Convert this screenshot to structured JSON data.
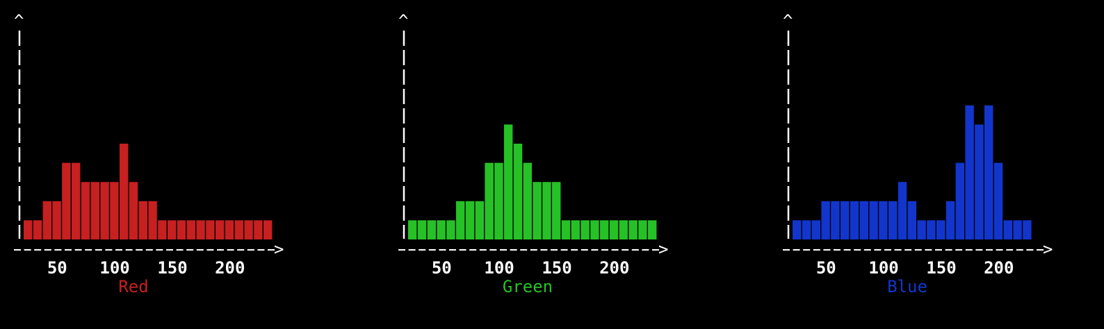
{
  "colors": {
    "background": "#000000",
    "axis": "#ffffff",
    "text": "#ffffff"
  },
  "chart_data": [
    {
      "type": "bar",
      "title": "Red",
      "color": "#c62020",
      "x_ticks": [
        "50",
        "100",
        "150",
        "200"
      ],
      "x_tick_values": [
        50,
        100,
        150,
        200
      ],
      "xlim": [
        16,
        250
      ],
      "y_axis_ticks": false,
      "bin_width": 8.33,
      "x": [
        25,
        33,
        42,
        50,
        58,
        66,
        75,
        83,
        91,
        100,
        108,
        116,
        125,
        133,
        141,
        150,
        158,
        166,
        175,
        183,
        191,
        200,
        208,
        216,
        225,
        233
      ],
      "values": [
        1,
        1,
        2,
        2,
        4,
        4,
        3,
        3,
        3,
        3,
        5,
        3,
        2,
        2,
        1,
        1,
        1,
        1,
        1,
        1,
        1,
        1,
        1,
        1,
        1,
        1
      ]
    },
    {
      "type": "bar",
      "title": "Green",
      "color": "#26c126",
      "x_ticks": [
        "50",
        "100",
        "150",
        "200"
      ],
      "x_tick_values": [
        50,
        100,
        150,
        200
      ],
      "xlim": [
        16,
        250
      ],
      "y_axis_ticks": false,
      "bin_width": 8.33,
      "x": [
        25,
        33,
        42,
        50,
        58,
        66,
        75,
        83,
        91,
        100,
        108,
        116,
        125,
        133,
        141,
        150,
        158,
        166,
        175,
        183,
        191,
        200,
        208,
        216,
        225,
        233
      ],
      "values": [
        1,
        1,
        1,
        1,
        1,
        2,
        2,
        2,
        4,
        4,
        6,
        5,
        4,
        3,
        3,
        3,
        1,
        1,
        1,
        1,
        1,
        1,
        1,
        1,
        1,
        1
      ]
    },
    {
      "type": "bar",
      "title": "Blue",
      "color": "#1236cc",
      "x_ticks": [
        "50",
        "100",
        "150",
        "200"
      ],
      "x_tick_values": [
        50,
        100,
        150,
        200
      ],
      "xlim": [
        16,
        250
      ],
      "y_axis_ticks": false,
      "bin_width": 8.33,
      "x": [
        25,
        33,
        42,
        50,
        58,
        66,
        75,
        83,
        91,
        100,
        108,
        116,
        125,
        133,
        141,
        150,
        158,
        166,
        175,
        183,
        191,
        200,
        208,
        216,
        225,
        233
      ],
      "values": [
        1,
        1,
        1,
        2,
        2,
        2,
        2,
        2,
        2,
        2,
        2,
        3,
        2,
        1,
        1,
        1,
        2,
        4,
        7,
        6,
        7,
        4,
        1,
        1,
        1,
        0
      ]
    }
  ]
}
